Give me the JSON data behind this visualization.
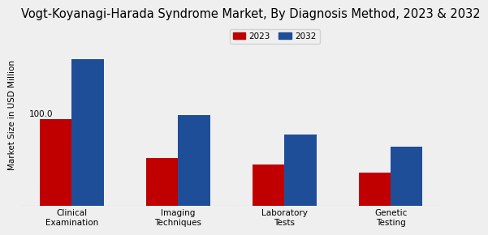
{
  "title": "Vogt-Koyanagi-Harada Syndrome Market, By Diagnosis Method, 2023 & 2032",
  "ylabel": "Market Size in USD Million",
  "categories": [
    "Clinical\nExamination",
    "Imaging\nTechniques",
    "Laboratory\nTests",
    "Genetic\nTesting"
  ],
  "values_2023": [
    100.0,
    55.0,
    48.0,
    38.0
  ],
  "values_2032": [
    170.0,
    105.0,
    82.0,
    68.0
  ],
  "color_2023": "#c00000",
  "color_2032": "#1f4e99",
  "bar_label": "100.0",
  "background_color": "#efefef",
  "legend_labels": [
    "2023",
    "2032"
  ],
  "title_fontsize": 10.5,
  "label_fontsize": 7.5,
  "tick_fontsize": 7.5,
  "ylim": [
    0,
    210
  ]
}
